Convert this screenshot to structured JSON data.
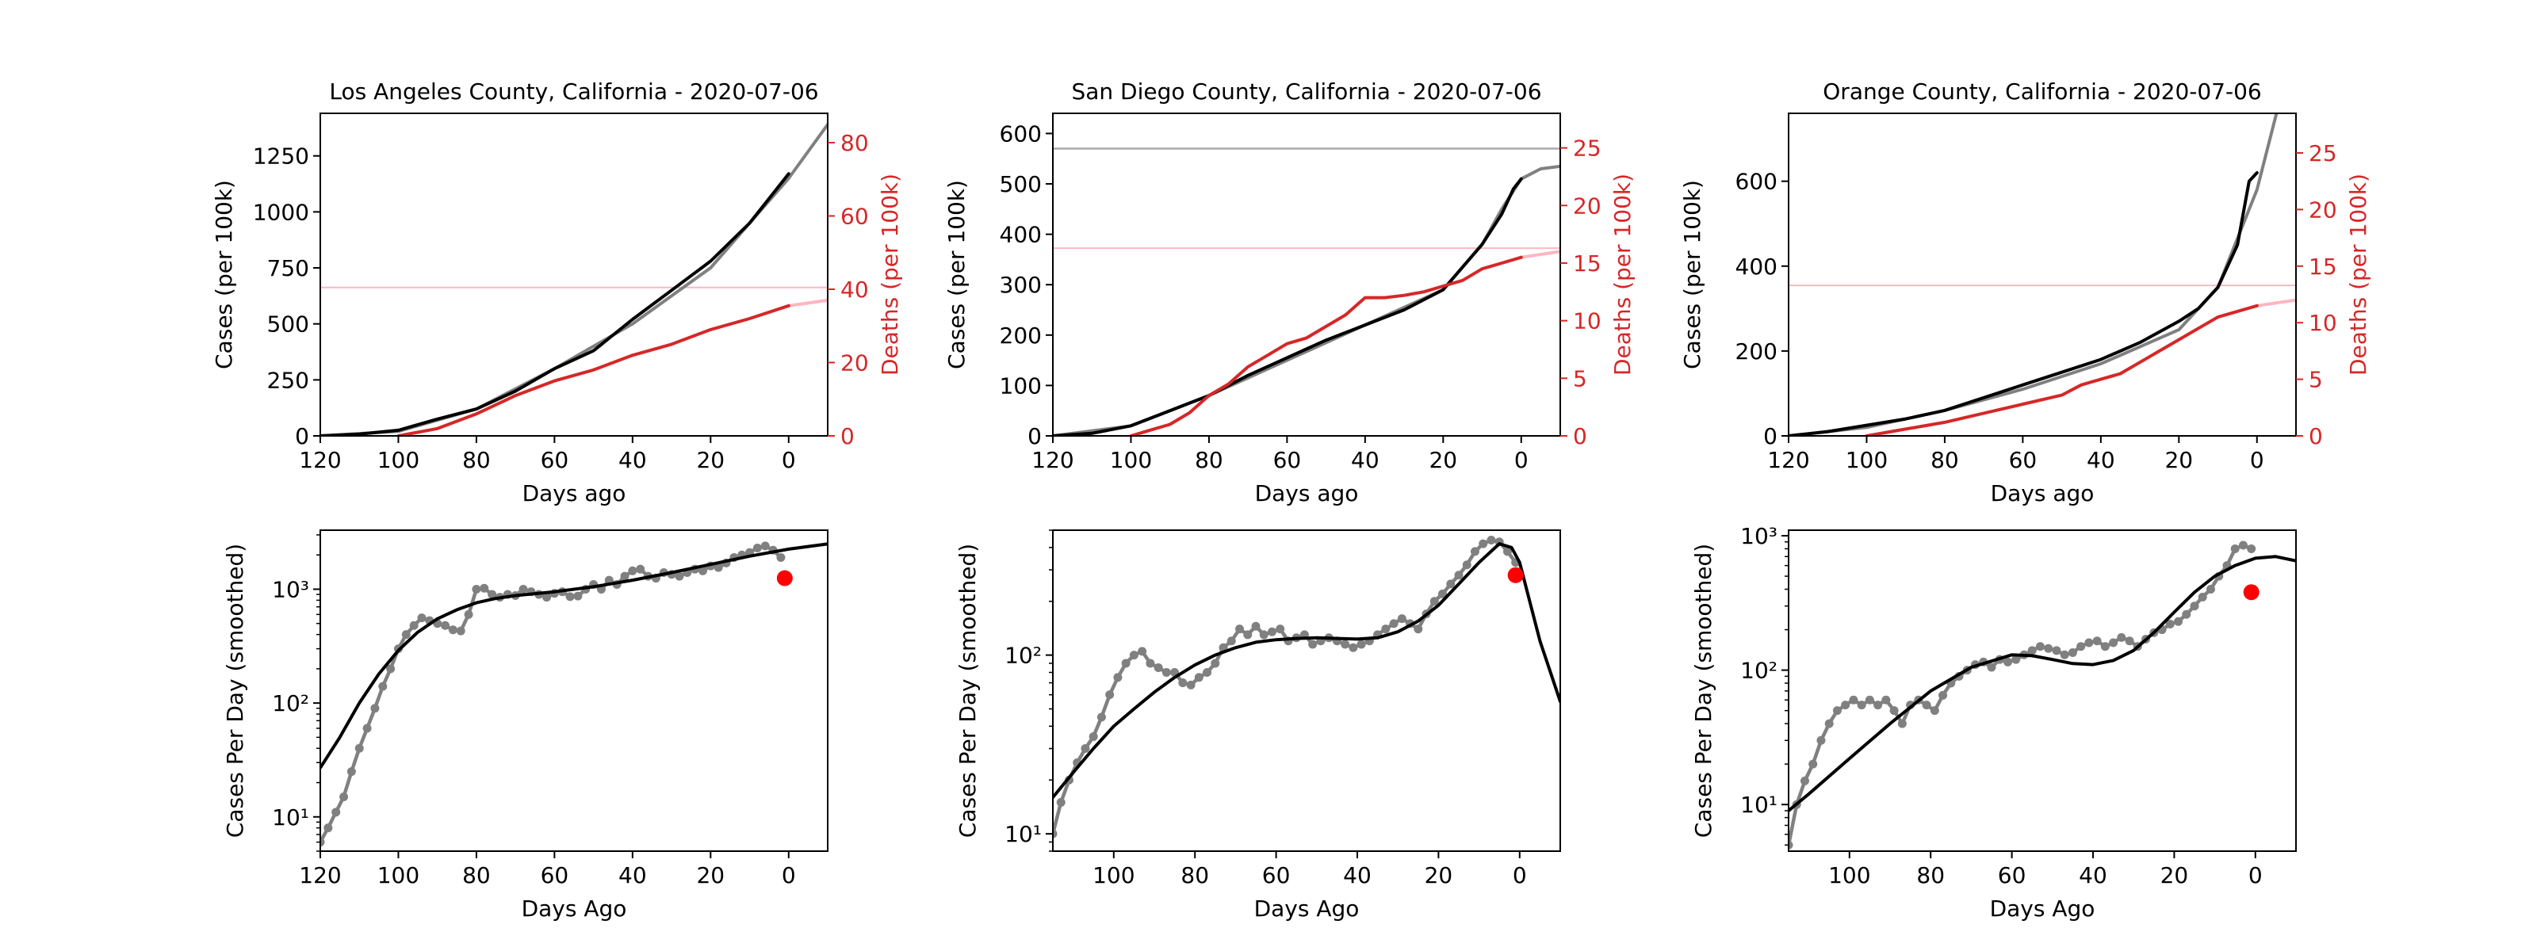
{
  "figure": {
    "colors": {
      "cases": "#000000",
      "cases_fit": "#808080",
      "deaths": "#d62728",
      "deaths_fit": "#ffb6c1",
      "deaths_axis": "#d62728",
      "points": "#808080",
      "last_point": "#ff0000"
    }
  },
  "chart_data": [
    {
      "type": "line",
      "title": "Los Angeles County, California - 2020-07-06",
      "xlabel": "Days ago",
      "ylabel": "Cases (per 100k)",
      "y2label": "Deaths (per 100k)",
      "xlim": [
        120,
        -10
      ],
      "ylim": [
        0,
        1440
      ],
      "y2lim": [
        0,
        88
      ],
      "xticks": [
        "120",
        "100",
        "80",
        "60",
        "40",
        "20",
        "0"
      ],
      "yticks": [
        "0",
        "250",
        "500",
        "750",
        "1000",
        "1250"
      ],
      "y2ticks": [
        "0",
        "20",
        "40",
        "60",
        "80"
      ],
      "cases": {
        "x": [
          120,
          110,
          100,
          90,
          80,
          70,
          60,
          50,
          40,
          30,
          20,
          10,
          5,
          0
        ],
        "y": [
          0,
          8,
          25,
          75,
          120,
          200,
          300,
          380,
          520,
          650,
          780,
          950,
          1060,
          1170
        ]
      },
      "cases_fit": {
        "x": [
          120,
          100,
          80,
          60,
          40,
          20,
          0,
          -10
        ],
        "y": [
          0,
          20,
          120,
          300,
          500,
          750,
          1150,
          1390
        ]
      },
      "deaths": {
        "x": [
          100,
          90,
          80,
          70,
          60,
          50,
          40,
          30,
          20,
          10,
          0
        ],
        "y": [
          0,
          2,
          6,
          11,
          15,
          18,
          22,
          25,
          29,
          32,
          35.5
        ]
      },
      "deaths_fit": {
        "x": [
          0,
          -10
        ],
        "y": [
          35.5,
          37
        ]
      },
      "deaths_hline": 40.5
    },
    {
      "type": "line",
      "title": "San Diego County, California - 2020-07-06",
      "xlabel": "Days ago",
      "ylabel": "Cases (per 100k)",
      "y2label": "Deaths (per 100k)",
      "xlim": [
        120,
        -10
      ],
      "ylim": [
        0,
        640
      ],
      "y2lim": [
        0,
        28
      ],
      "xticks": [
        "120",
        "100",
        "80",
        "60",
        "40",
        "20",
        "0"
      ],
      "yticks": [
        "0",
        "100",
        "200",
        "300",
        "400",
        "500",
        "600"
      ],
      "y2ticks": [
        "0",
        "5",
        "10",
        "15",
        "20",
        "25"
      ],
      "cases": {
        "x": [
          120,
          110,
          100,
          90,
          80,
          70,
          60,
          50,
          40,
          30,
          20,
          10,
          5,
          2,
          0
        ],
        "y": [
          0,
          5,
          20,
          50,
          80,
          120,
          155,
          190,
          220,
          250,
          290,
          380,
          440,
          490,
          510
        ]
      },
      "cases_fit": {
        "x": [
          120,
          100,
          80,
          60,
          40,
          20,
          10,
          5,
          0,
          -5,
          -10
        ],
        "y": [
          0,
          20,
          80,
          150,
          220,
          290,
          380,
          450,
          510,
          530,
          535
        ]
      },
      "cases_hline": 570,
      "deaths": {
        "x": [
          100,
          95,
          90,
          85,
          80,
          75,
          70,
          65,
          60,
          55,
          50,
          45,
          40,
          35,
          30,
          25,
          20,
          15,
          10,
          5,
          0
        ],
        "y": [
          0,
          0.5,
          1,
          2,
          3.5,
          4.5,
          6,
          7,
          8,
          8.5,
          9.5,
          10.5,
          12,
          12,
          12.2,
          12.5,
          13,
          13.5,
          14.5,
          15,
          15.5
        ]
      },
      "deaths_fit": {
        "x": [
          0,
          -10
        ],
        "y": [
          15.5,
          16
        ]
      },
      "deaths_hline": 16.3
    },
    {
      "type": "line",
      "title": "Orange County, California - 2020-07-06",
      "xlabel": "Days ago",
      "ylabel": "Cases (per 100k)",
      "y2label": "Deaths (per 100k)",
      "xlim": [
        120,
        -10
      ],
      "ylim": [
        0,
        760
      ],
      "y2lim": [
        0,
        28.5
      ],
      "xticks": [
        "120",
        "100",
        "80",
        "60",
        "40",
        "20",
        "0"
      ],
      "yticks": [
        "0",
        "200",
        "400",
        "600"
      ],
      "y2ticks": [
        "0",
        "5",
        "10",
        "15",
        "20",
        "25"
      ],
      "cases": {
        "x": [
          120,
          110,
          100,
          90,
          80,
          70,
          60,
          50,
          40,
          30,
          20,
          15,
          10,
          5,
          2,
          0
        ],
        "y": [
          0,
          10,
          25,
          40,
          60,
          90,
          120,
          150,
          180,
          220,
          270,
          300,
          350,
          450,
          600,
          620
        ]
      },
      "cases_fit": {
        "x": [
          120,
          100,
          80,
          60,
          40,
          20,
          10,
          0,
          -5
        ],
        "y": [
          0,
          20,
          60,
          110,
          170,
          250,
          350,
          580,
          760
        ]
      },
      "deaths": {
        "x": [
          100,
          90,
          80,
          70,
          60,
          50,
          45,
          40,
          35,
          30,
          25,
          20,
          15,
          10,
          5,
          0
        ],
        "y": [
          0,
          0.6,
          1.2,
          2,
          2.8,
          3.6,
          4.5,
          5,
          5.5,
          6.5,
          7.5,
          8.5,
          9.5,
          10.5,
          11,
          11.5
        ]
      },
      "deaths_fit": {
        "x": [
          0,
          -10
        ],
        "y": [
          11.5,
          12
        ]
      },
      "deaths_hline": 13.3
    },
    {
      "type": "scatter",
      "xlabel": "Days Ago",
      "ylabel": "Cases Per Day (smoothed)",
      "yscale": "log",
      "xlim": [
        120,
        -10
      ],
      "ylim": [
        5,
        3300
      ],
      "xticks": [
        "120",
        "100",
        "80",
        "60",
        "40",
        "20",
        "0"
      ],
      "yticks": [
        "10¹",
        "10²",
        "10³"
      ],
      "points": {
        "x": [
          120,
          118,
          116,
          114,
          112,
          110,
          108,
          106,
          104,
          102,
          100,
          98,
          96,
          94,
          92,
          90,
          88,
          86,
          84,
          82,
          80,
          78,
          76,
          74,
          72,
          70,
          68,
          66,
          64,
          62,
          60,
          58,
          56,
          54,
          52,
          50,
          48,
          46,
          44,
          42,
          40,
          38,
          36,
          34,
          32,
          30,
          28,
          26,
          24,
          22,
          20,
          18,
          16,
          14,
          12,
          10,
          8,
          6,
          4,
          2
        ],
        "y": [
          6,
          8,
          11,
          15,
          25,
          40,
          60,
          90,
          140,
          200,
          300,
          400,
          480,
          560,
          530,
          500,
          480,
          440,
          430,
          600,
          1000,
          1020,
          900,
          850,
          900,
          880,
          1000,
          950,
          900,
          850,
          920,
          950,
          860,
          870,
          1000,
          1100,
          1000,
          1200,
          1100,
          1300,
          1450,
          1500,
          1300,
          1250,
          1400,
          1350,
          1300,
          1400,
          1500,
          1450,
          1600,
          1550,
          1700,
          1900,
          2000,
          2100,
          2300,
          2400,
          2200,
          1900
        ]
      },
      "last_point": {
        "x": 1,
        "y": 1250
      },
      "fit": {
        "x": [
          120,
          115,
          110,
          105,
          100,
          95,
          90,
          85,
          80,
          75,
          70,
          60,
          50,
          40,
          30,
          20,
          10,
          0,
          -10
        ],
        "y": [
          27,
          50,
          100,
          180,
          290,
          420,
          550,
          660,
          760,
          830,
          880,
          950,
          1050,
          1200,
          1400,
          1650,
          1950,
          2250,
          2500
        ]
      }
    },
    {
      "type": "scatter",
      "xlabel": "Days Ago",
      "ylabel": "Cases Per Day (smoothed)",
      "yscale": "log",
      "xlim": [
        115,
        -10
      ],
      "ylim": [
        8,
        500
      ],
      "xticks": [
        "100",
        "80",
        "60",
        "40",
        "20",
        "0"
      ],
      "yticks": [
        "10¹",
        "10²"
      ],
      "points": {
        "x": [
          115,
          113,
          111,
          109,
          107,
          105,
          103,
          101,
          99,
          97,
          95,
          93,
          91,
          89,
          87,
          85,
          83,
          81,
          79,
          77,
          75,
          73,
          71,
          69,
          67,
          65,
          63,
          61,
          59,
          57,
          55,
          53,
          51,
          49,
          47,
          45,
          43,
          41,
          39,
          37,
          35,
          33,
          31,
          29,
          27,
          25,
          23,
          21,
          19,
          17,
          15,
          13,
          11,
          9,
          7,
          5,
          3,
          1
        ],
        "y": [
          10,
          15,
          20,
          25,
          30,
          35,
          45,
          60,
          75,
          90,
          100,
          105,
          90,
          85,
          80,
          80,
          70,
          68,
          75,
          80,
          90,
          110,
          120,
          140,
          130,
          145,
          130,
          135,
          140,
          120,
          125,
          130,
          115,
          120,
          125,
          120,
          115,
          110,
          115,
          120,
          130,
          140,
          150,
          160,
          150,
          140,
          170,
          200,
          220,
          250,
          280,
          320,
          380,
          420,
          440,
          430,
          380,
          330
        ]
      },
      "last_point": {
        "x": 1,
        "y": 280
      },
      "fit": {
        "x": [
          115,
          110,
          105,
          100,
          95,
          90,
          85,
          80,
          75,
          70,
          65,
          60,
          55,
          50,
          45,
          40,
          35,
          30,
          25,
          20,
          15,
          10,
          5,
          2,
          0,
          -5,
          -10
        ],
        "y": [
          16,
          22,
          30,
          40,
          50,
          62,
          75,
          88,
          100,
          110,
          118,
          122,
          124,
          125,
          124,
          123,
          125,
          135,
          155,
          190,
          250,
          330,
          420,
          400,
          330,
          120,
          55
        ]
      }
    },
    {
      "type": "scatter",
      "xlabel": "Days Ago",
      "ylabel": "Cases Per Day (smoothed)",
      "yscale": "log",
      "xlim": [
        115,
        -10
      ],
      "ylim": [
        4.5,
        1100
      ],
      "xticks": [
        "100",
        "80",
        "60",
        "40",
        "20",
        "0"
      ],
      "yticks": [
        "10¹",
        "10²",
        "10³"
      ],
      "points": {
        "x": [
          115,
          113,
          111,
          109,
          107,
          105,
          103,
          101,
          99,
          97,
          95,
          93,
          91,
          89,
          87,
          85,
          83,
          81,
          79,
          77,
          75,
          73,
          71,
          69,
          67,
          65,
          63,
          61,
          59,
          57,
          55,
          53,
          51,
          49,
          47,
          45,
          43,
          41,
          39,
          37,
          35,
          33,
          31,
          29,
          27,
          25,
          23,
          21,
          19,
          17,
          15,
          13,
          11,
          9,
          7,
          5,
          3,
          1
        ],
        "y": [
          5,
          10,
          15,
          20,
          30,
          40,
          50,
          55,
          60,
          55,
          60,
          55,
          60,
          50,
          40,
          55,
          60,
          55,
          50,
          65,
          80,
          90,
          100,
          110,
          115,
          105,
          120,
          115,
          120,
          130,
          140,
          150,
          145,
          140,
          130,
          135,
          150,
          160,
          165,
          150,
          160,
          175,
          165,
          150,
          170,
          190,
          200,
          220,
          230,
          260,
          300,
          350,
          400,
          500,
          600,
          800,
          850,
          800
        ]
      },
      "last_point": {
        "x": 1,
        "y": 380
      },
      "fit": {
        "x": [
          115,
          110,
          100,
          90,
          80,
          70,
          60,
          55,
          50,
          45,
          40,
          35,
          30,
          25,
          20,
          15,
          10,
          5,
          0,
          -5,
          -10
        ],
        "y": [
          9,
          12,
          22,
          40,
          70,
          105,
          130,
          128,
          120,
          112,
          110,
          118,
          140,
          190,
          270,
          380,
          500,
          600,
          680,
          700,
          650
        ]
      }
    }
  ]
}
